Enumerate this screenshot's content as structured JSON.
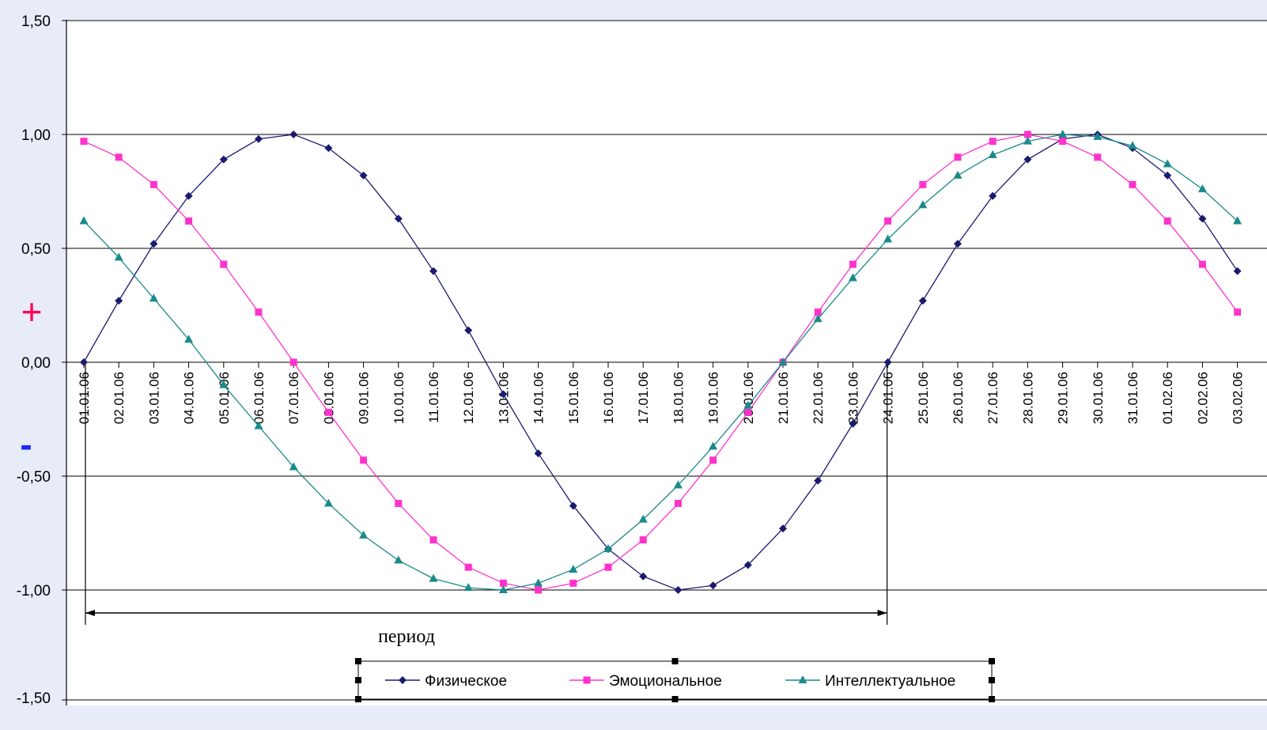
{
  "chart_data": {
    "type": "line",
    "title": "",
    "xlabel": "",
    "ylabel": "",
    "ylim": [
      -1.5,
      1.5
    ],
    "y_ticks": [
      "1,50",
      "1,00",
      "0,50",
      "0,00",
      "-0,50",
      "-1,00",
      "-1,50"
    ],
    "y_tick_values": [
      1.5,
      1.0,
      0.5,
      0.0,
      -0.5,
      -1.0,
      -1.5
    ],
    "grid": "horizontal",
    "legend_position": "bottom",
    "categories": [
      "01.01.06",
      "02.01.06",
      "03.01.06",
      "04.01.06",
      "05.01.06",
      "06.01.06",
      "07.01.06",
      "08.01.06",
      "09.01.06",
      "10.01.06",
      "11.01.06",
      "12.01.06",
      "13.01.06",
      "14.01.06",
      "15.01.06",
      "16.01.06",
      "17.01.06",
      "18.01.06",
      "19.01.06",
      "20.01.06",
      "21.01.06",
      "22.01.06",
      "23.01.06",
      "24.01.06",
      "25.01.06",
      "26.01.06",
      "27.01.06",
      "28.01.06",
      "29.01.06",
      "30.01.06",
      "31.01.06",
      "01.02.06",
      "02.02.06",
      "03.02.06"
    ],
    "series": [
      {
        "name": "Физическое",
        "color": "#1a1a6e",
        "marker": "diamond",
        "values": [
          0.0,
          0.27,
          0.52,
          0.73,
          0.89,
          0.98,
          1.0,
          0.94,
          0.82,
          0.63,
          0.4,
          0.14,
          -0.14,
          -0.4,
          -0.63,
          -0.82,
          -0.94,
          -1.0,
          -0.98,
          -0.89,
          -0.73,
          -0.52,
          -0.27,
          0.0,
          0.27,
          0.52,
          0.73,
          0.89,
          0.98,
          1.0,
          0.94,
          0.82,
          0.63,
          0.4
        ]
      },
      {
        "name": "Эмоциональное",
        "color": "#ff33cc",
        "marker": "square",
        "values": [
          0.97,
          0.9,
          0.78,
          0.62,
          0.43,
          0.22,
          0.0,
          -0.22,
          -0.43,
          -0.62,
          -0.78,
          -0.9,
          -0.97,
          -1.0,
          -0.97,
          -0.9,
          -0.78,
          -0.62,
          -0.43,
          -0.22,
          0.0,
          0.22,
          0.43,
          0.62,
          0.78,
          0.9,
          0.97,
          1.0,
          0.97,
          0.9,
          0.78,
          0.62,
          0.43,
          0.22
        ]
      },
      {
        "name": "Интеллектуальное",
        "color": "#1a8a8a",
        "marker": "triangle",
        "values": [
          0.62,
          0.46,
          0.28,
          0.1,
          -0.1,
          -0.28,
          -0.46,
          -0.62,
          -0.76,
          -0.87,
          -0.95,
          -0.99,
          -1.0,
          -0.97,
          -0.91,
          -0.82,
          -0.69,
          -0.54,
          -0.37,
          -0.19,
          0.0,
          0.19,
          0.37,
          0.54,
          0.69,
          0.82,
          0.91,
          0.97,
          1.0,
          0.99,
          0.95,
          0.87,
          0.76,
          0.62
        ]
      }
    ],
    "annotations": {
      "plus": "+",
      "minus": "-",
      "period": "период",
      "period_start": "01.01.06",
      "period_end": "24.01.06"
    },
    "plus_color": "#ff0055",
    "minus_color": "#1a2aff"
  }
}
